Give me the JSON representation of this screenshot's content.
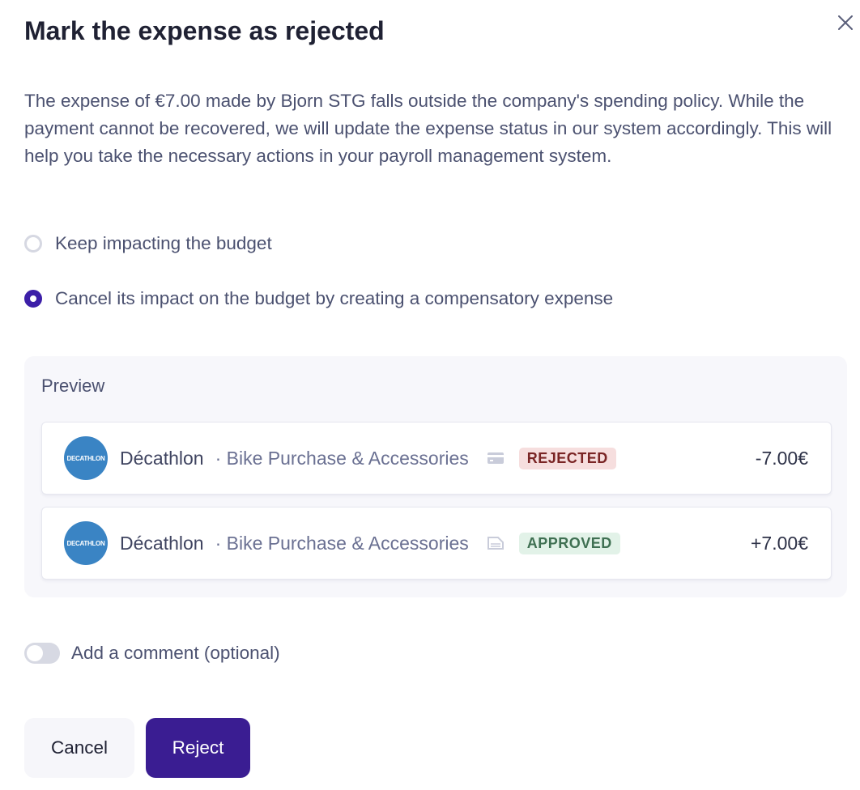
{
  "dialog": {
    "title": "Mark the expense as rejected",
    "description": "The expense of €7.00 made by Bjorn STG falls outside the company's spending policy. While the payment cannot be recovered, we will update the expense status in our system accordingly. This will help you take the necessary actions in your payroll management system.",
    "options": [
      {
        "label": "Keep impacting the budget",
        "selected": false
      },
      {
        "label": "Cancel its impact on the budget by creating a compensatory expense",
        "selected": true
      }
    ],
    "preview": {
      "label": "Preview",
      "rows": [
        {
          "logo_text": "DECATHLON",
          "merchant": "Décathlon",
          "description": "· Bike Purchase & Accessories",
          "icon": "credit-card-icon",
          "status": "REJECTED",
          "amount": "-7.00€"
        },
        {
          "logo_text": "DECATHLON",
          "merchant": "Décathlon",
          "description": "· Bike Purchase & Accessories",
          "icon": "receipt-icon",
          "status": "APPROVED",
          "amount": "+7.00€"
        }
      ]
    },
    "comment_toggle": {
      "label": "Add a comment (optional)",
      "on": false
    },
    "cancel_label": "Cancel",
    "reject_label": "Reject",
    "colors": {
      "accent": "#3a1d92",
      "rejected_bg": "#f6dede",
      "approved_bg": "#e2f2e8"
    }
  }
}
